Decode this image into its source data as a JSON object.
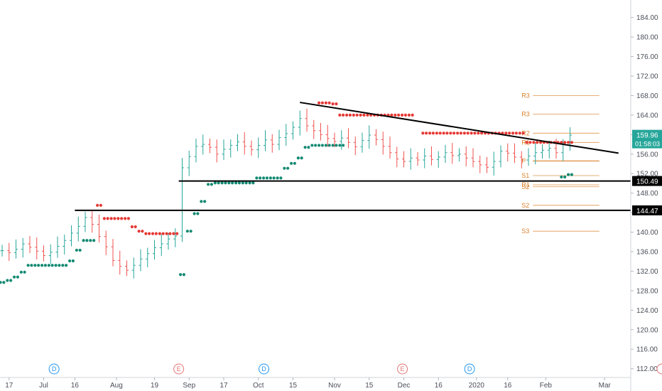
{
  "chart_data": {
    "type": "line",
    "title": "",
    "xlabel": "",
    "ylabel": "",
    "ylim": [
      110.2,
      187.6
    ],
    "yticks": [
      112,
      116,
      120,
      124,
      128,
      132,
      136,
      140,
      144,
      148,
      152,
      156,
      160,
      164,
      168,
      172,
      176,
      180,
      184
    ],
    "ytick_labels": [
      "112.00",
      "116.00",
      "120.00",
      "124.00",
      "128.00",
      "132.00",
      "136.00",
      "140.00",
      "144.00",
      "148.00",
      "152.00",
      "156.00",
      "160.00",
      "164.00",
      "168.00",
      "172.00",
      "176.00",
      "180.00",
      "184.00"
    ],
    "xlim": [
      0,
      89
    ],
    "xticks": [
      {
        "label": "17",
        "x": 1
      },
      {
        "label": "Jul",
        "x": 6
      },
      {
        "label": "16",
        "x": 10.5
      },
      {
        "label": "Aug",
        "x": 16.5
      },
      {
        "label": "19",
        "x": 22
      },
      {
        "label": "Sep",
        "x": 27
      },
      {
        "label": "17",
        "x": 32
      },
      {
        "label": "Oct",
        "x": 37
      },
      {
        "label": "15",
        "x": 42
      },
      {
        "label": "Nov",
        "x": 48
      },
      {
        "label": "15",
        "x": 53
      },
      {
        "label": "Dec",
        "x": 58
      },
      {
        "label": "16",
        "x": 63
      },
      {
        "label": "2020",
        "x": 68.5
      },
      {
        "label": "16",
        "x": 73
      },
      {
        "label": "Feb",
        "x": 78.5
      },
      {
        "label": "Mar",
        "x": 87
      }
    ],
    "price_series": {
      "name": "",
      "x": [
        0,
        1,
        2,
        3,
        4,
        5,
        6,
        7,
        8,
        9,
        10,
        11,
        12,
        13,
        14,
        15,
        16,
        17,
        18,
        19,
        20,
        21,
        22,
        23,
        24,
        25,
        26,
        27,
        28,
        29,
        30,
        31,
        32,
        33,
        34,
        35,
        36,
        37,
        38,
        39,
        40,
        41,
        42,
        43,
        44,
        45,
        46,
        47,
        48,
        49,
        50,
        51,
        52,
        53,
        54,
        55,
        56,
        57,
        58,
        59,
        60,
        61,
        62,
        63,
        64,
        65,
        66,
        67,
        68,
        69,
        70,
        71,
        72,
        73,
        74,
        75,
        76,
        77,
        78,
        79,
        80,
        81,
        82
      ],
      "y": [
        136.2,
        135.8,
        136.5,
        137.6,
        136.9,
        136.1,
        135.2,
        135.9,
        137.1,
        138.3,
        139.8,
        141.2,
        143.0,
        141.6,
        139.1,
        137.0,
        134.2,
        133.0,
        132.2,
        133.2,
        134.5,
        135.6,
        136.8,
        137.6,
        138.6,
        139.2,
        153.2,
        155.5,
        157.6,
        158.0,
        157.4,
        156.0,
        157.0,
        157.8,
        158.5,
        157.6,
        156.9,
        157.8,
        158.9,
        158.0,
        159.4,
        160.2,
        161.5,
        163.3,
        161.8,
        160.8,
        160.0,
        159.2,
        158.6,
        159.3,
        158.4,
        157.5,
        158.8,
        159.9,
        159.0,
        157.6,
        156.3,
        155.0,
        154.5,
        155.2,
        154.8,
        155.6,
        154.9,
        155.4,
        156.3,
        155.7,
        156.0,
        155.2,
        154.5,
        153.8,
        153.3,
        154.5,
        156.6,
        156.2,
        155.4,
        154.8,
        155.6,
        156.3,
        156.8,
        157.2,
        156.3,
        157.9,
        159.9
      ]
    },
    "psar_support": {
      "name": "",
      "x": [
        0,
        1,
        2,
        3,
        4,
        5,
        6,
        7,
        8,
        9,
        10,
        11,
        12,
        13,
        14,
        15,
        16,
        17,
        18,
        19,
        20,
        21,
        22,
        23,
        24,
        25,
        26,
        27,
        28,
        29,
        30,
        31,
        32,
        33,
        34,
        35,
        36,
        37,
        38,
        39,
        40,
        41,
        42,
        43,
        44,
        45,
        46,
        47,
        48,
        49,
        50,
        51,
        52,
        53,
        54,
        55,
        56,
        57,
        58,
        59,
        60,
        61,
        62,
        63,
        64,
        65,
        66,
        67,
        68,
        69,
        70,
        71,
        72,
        73,
        74,
        75,
        76,
        77,
        78,
        79,
        80,
        81,
        82
      ],
      "y": [
        129.7,
        130.1,
        130.8,
        131.8,
        133.2,
        133.2,
        133.2,
        133.2,
        133.2,
        133.2,
        134.1,
        136.3,
        138.3,
        138.3,
        null,
        null,
        null,
        null,
        null,
        null,
        null,
        null,
        null,
        null,
        null,
        null,
        131.3,
        140.2,
        143.8,
        146.3,
        149.8,
        150.1,
        150.1,
        150.1,
        150.1,
        150.1,
        150.1,
        151.1,
        151.1,
        151.1,
        151.1,
        153.1,
        154.1,
        155.2,
        157.4,
        157.8,
        157.8,
        157.8,
        157.8,
        157.8,
        null,
        null,
        null,
        null,
        null,
        null,
        null,
        null,
        null,
        null,
        null,
        null,
        null,
        null,
        null,
        null,
        null,
        null,
        null,
        null,
        null,
        null,
        null,
        null,
        null,
        null,
        null,
        null,
        null,
        null,
        null,
        151.3,
        151.8
      ]
    },
    "psar_resistance": {
      "name": "",
      "x": [
        0,
        1,
        2,
        3,
        4,
        5,
        6,
        7,
        8,
        9,
        10,
        11,
        12,
        13,
        14,
        15,
        16,
        17,
        18,
        19,
        20,
        21,
        22,
        23,
        24,
        25,
        26,
        27,
        28,
        29,
        30,
        31,
        32,
        33,
        34,
        35,
        36,
        37,
        38,
        39,
        40,
        41,
        42,
        43,
        44,
        45,
        46,
        47,
        48,
        49,
        50,
        51,
        52,
        53,
        54,
        55,
        56,
        57,
        58,
        59,
        60,
        61,
        62,
        63,
        64,
        65,
        66,
        67,
        68,
        69,
        70,
        71,
        72,
        73,
        74,
        75,
        76,
        77,
        78,
        79,
        80,
        81,
        82
      ],
      "y": [
        null,
        null,
        null,
        null,
        null,
        null,
        null,
        null,
        null,
        null,
        null,
        null,
        null,
        null,
        145.5,
        142.8,
        142.8,
        142.8,
        142.8,
        141.1,
        140.2,
        139.7,
        139.7,
        139.7,
        139.7,
        139.7,
        null,
        null,
        null,
        null,
        null,
        null,
        null,
        null,
        null,
        null,
        null,
        null,
        null,
        null,
        null,
        null,
        null,
        null,
        null,
        null,
        166.5,
        166.5,
        166.3,
        164.0,
        164.0,
        164.0,
        164.0,
        164.0,
        164.0,
        164.0,
        164.0,
        164.0,
        164.0,
        164.0,
        null,
        160.3,
        160.3,
        160.3,
        160.3,
        160.3,
        160.3,
        160.3,
        160.3,
        160.3,
        160.3,
        160.3,
        160.3,
        160.3,
        160.3,
        160.3,
        158.4,
        158.4,
        158.4,
        158.4,
        158.4,
        158.4,
        158.4
      ]
    },
    "annotations": {
      "trendline": {
        "x": [
          43,
          89
        ],
        "y": [
          166.6,
          156.2
        ]
      },
      "horizontal_lines": [
        {
          "y": 150.49,
          "x_start": 25.5,
          "label": "150.49"
        },
        {
          "y": 144.47,
          "x_start": 10.5,
          "label": "144.47"
        }
      ],
      "last_price": {
        "value": "159.96",
        "countdown": "01:58:03",
        "color": "#26a69a"
      },
      "pivot_levels": [
        {
          "label": "R3",
          "y": 168.0
        },
        {
          "label": "R3",
          "y": 164.2
        },
        {
          "label": "R2",
          "y": 160.3
        },
        {
          "label": "R1",
          "y": 158.4
        },
        {
          "label": "P",
          "y": 154.6
        },
        {
          "label": "S1",
          "y": 151.6
        },
        {
          "label": "R1",
          "y": 149.7
        },
        {
          "label": "S2",
          "y": 149.3
        },
        {
          "label": "S2",
          "y": 145.5
        },
        {
          "label": "S3",
          "y": 140.2
        }
      ],
      "pivot_x_range": [
        75,
        85
      ],
      "events": [
        {
          "letter": "D",
          "x": 7.5,
          "color": "#2196f3"
        },
        {
          "letter": "E",
          "x": 25.5,
          "color": "#e57373"
        },
        {
          "letter": "D",
          "x": 37.8,
          "color": "#2196f3"
        },
        {
          "letter": "E",
          "x": 57.8,
          "color": "#e57373"
        },
        {
          "letter": "D",
          "x": 67.5,
          "color": "#2196f3"
        }
      ]
    },
    "colors": {
      "up": "#26a69a",
      "down": "#ef5350",
      "psar_support": "#138a73",
      "psar_resistance": "#e53935",
      "pivot": "#d9822b",
      "annotation": "#000000",
      "axis_text": "#4a4e59"
    },
    "grid": false,
    "legend": "none"
  }
}
